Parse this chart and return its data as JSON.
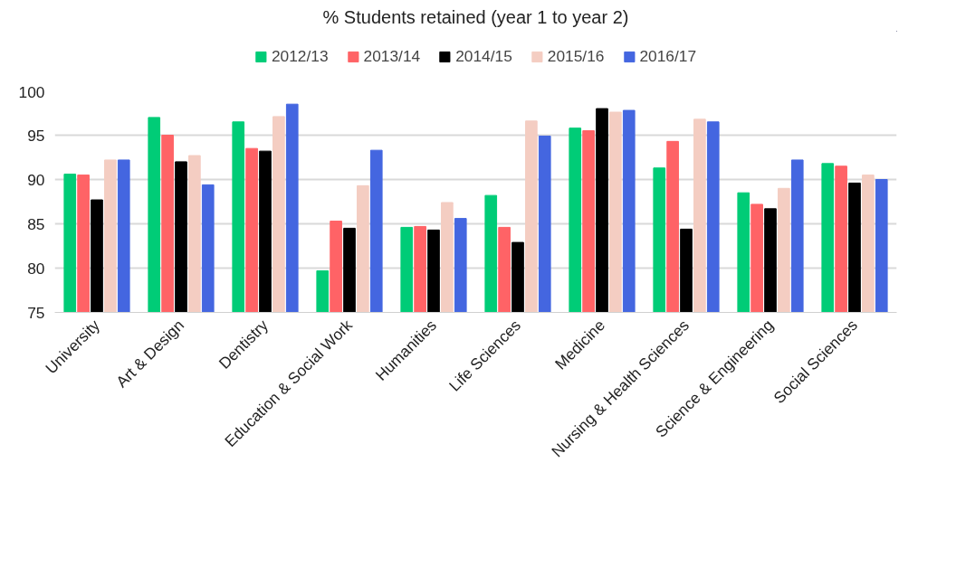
{
  "chart_data": {
    "type": "bar",
    "title": "% Students retained (year 1 to year 2)",
    "categories": [
      "University",
      "Art & Design",
      "Dentistry",
      "Education & Social Work",
      "Humanities",
      "Life Sciences",
      "Medicine",
      "Nursing & Health Sciences",
      "Science & Engineering",
      "Social Sciences"
    ],
    "series": [
      {
        "name": "2012/13",
        "color": "#00cc77",
        "values": [
          90.6,
          97.0,
          96.5,
          79.7,
          84.6,
          88.2,
          95.8,
          91.3,
          88.5,
          91.8
        ]
      },
      {
        "name": "2013/14",
        "color": "#ff6366",
        "values": [
          90.5,
          95.0,
          93.5,
          85.3,
          84.7,
          84.6,
          95.5,
          94.3,
          87.2,
          91.5
        ]
      },
      {
        "name": "2014/15",
        "color": "#000000",
        "values": [
          87.7,
          92.0,
          93.2,
          84.5,
          84.3,
          82.9,
          98.0,
          84.4,
          86.7,
          89.6
        ]
      },
      {
        "name": "2015/16",
        "color": "#f4cdc2",
        "values": [
          92.2,
          92.7,
          97.1,
          89.3,
          87.4,
          96.6,
          97.6,
          96.8,
          89.0,
          90.5
        ]
      },
      {
        "name": "2016/17",
        "color": "#4466e0",
        "values": [
          92.2,
          89.4,
          98.5,
          93.3,
          85.6,
          94.9,
          97.8,
          96.5,
          92.2,
          90.0
        ]
      }
    ],
    "ylim": [
      75,
      100
    ],
    "yticks": [
      75,
      80,
      85,
      90,
      95,
      100
    ],
    "grid": "y",
    "legend": "top"
  }
}
